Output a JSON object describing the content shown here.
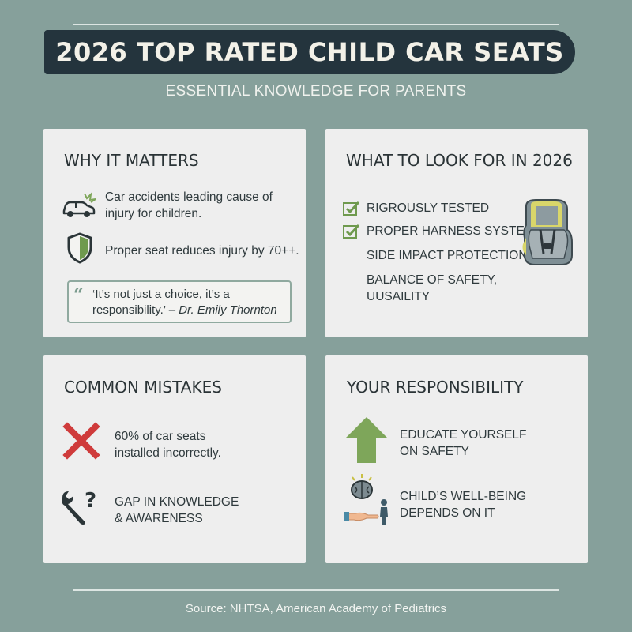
{
  "banner": {
    "title": "2026 TOP RATED CHILD CAR SEATS"
  },
  "subtitle": "ESSENTIAL KNOWLEDGE FOR PARENTS",
  "why": {
    "heading": "WHY IT MATTERS",
    "item1_line1": "Car accidents leading cause of",
    "item1_line2": "injury for children.",
    "item1_icon": "car-crash-icon",
    "item2": "Proper seat reduces injury by 70++.",
    "item2_icon": "shield-icon",
    "quote_line1": "‘It’s not just a choice, it’s a",
    "quote_line2": "responsibility.’ –",
    "quote_author": "Dr. Emily Thornton"
  },
  "look": {
    "heading": "WHAT TO LOOK FOR IN 2026",
    "items": [
      "RIGROUSLY TESTED",
      "PROPER HARNESS SYSTEMS",
      "SIDE IMPACT PROTECTION"
    ],
    "item4_line1": "BALANCE OF SAFETY,",
    "item4_line2": "UUSAILITY",
    "image_icon": "car-seat-icon"
  },
  "mistakes": {
    "heading": "COMMON MISTAKES",
    "item1_line1": "60% of car seats",
    "item1_line2": "installed incorrectly.",
    "item1_icon": "x-mark-icon",
    "item2_line1": "GAP IN KNOWLEDGE",
    "item2_line2": "& AWARENESS",
    "item2_icon": "wrench-question-icon"
  },
  "responsibility": {
    "heading": "YOUR RESPONSIBILITY",
    "item1_line1": "EDUCATE YOURSELF",
    "item1_line2": "ON SAFETY",
    "item1_icon": "up-arrow-icon",
    "item2_line1": "CHILD’S WELL-BEING",
    "item2_line2": "DEPENDS ON IT",
    "item2_icon": "brain-hand-child-icon"
  },
  "source": "Source: NHTSA, American Academy of Pediatrics",
  "colors": {
    "background": "#86a09b",
    "banner": "#24343d",
    "card": "#eeeeee",
    "check": "#6f9a4e",
    "x_mark": "#cf3b3b",
    "arrow": "#7ea65a"
  }
}
